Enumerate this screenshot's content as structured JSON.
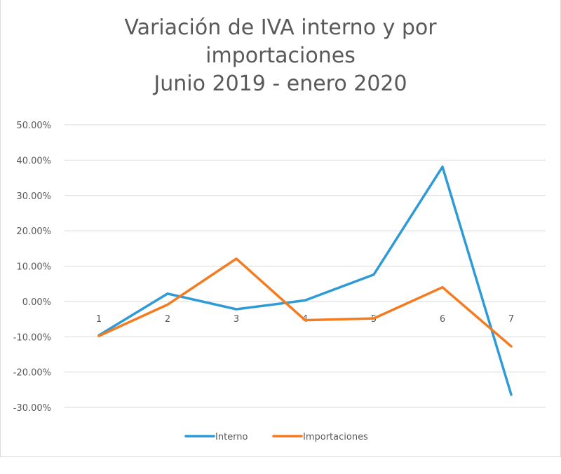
{
  "chart_data": {
    "type": "line",
    "title": [
      "Variación de IVA interno y por",
      "importaciones",
      "Junio 2019  - enero 2020"
    ],
    "xlabel": "",
    "ylabel": "",
    "categories": [
      "1",
      "2",
      "3",
      "4",
      "5",
      "6",
      "7"
    ],
    "yticks": [
      "50.00%",
      "40.00%",
      "30.00%",
      "20.00%",
      "10.00%",
      "0.00%",
      "-10.00%",
      "-20.00%",
      "-30.00%"
    ],
    "ylim": [
      -30,
      50
    ],
    "grid": true,
    "legend_position": "bottom",
    "series": [
      {
        "name": "Interno",
        "color": "#2e9bd6",
        "values": [
          -9.6,
          2.2,
          -2.2,
          0.3,
          7.6,
          38.1,
          -26.4
        ]
      },
      {
        "name": "Importaciones",
        "color": "#f47b20",
        "values": [
          -9.8,
          -0.9,
          12.1,
          -5.3,
          -4.8,
          4.0,
          -12.7
        ]
      }
    ]
  }
}
